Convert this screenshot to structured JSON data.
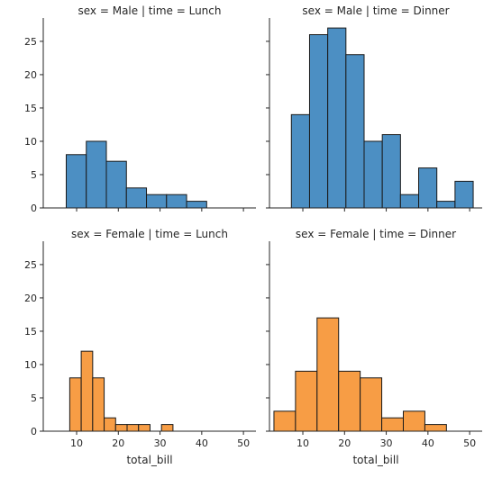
{
  "chart_data": {
    "type": "bar",
    "subtype": "histogram-facet-grid",
    "xlabel": "total_bill",
    "ylabel": "",
    "xlim": [
      2,
      53
    ],
    "ylim": [
      0,
      28.5
    ],
    "xticks": [
      10,
      20,
      30,
      40,
      50
    ],
    "yticks": [
      0,
      5,
      10,
      15,
      20,
      25
    ],
    "grid": false,
    "colors": {
      "male": "#4c8fc3",
      "female": "#f79d45",
      "edge": "#1a1a1a"
    },
    "panels": [
      {
        "title": "sex = Male | time = Lunch",
        "row": 0,
        "col": 0,
        "color": "#4c8fc3",
        "bin_start": 7.51,
        "bin_width": 4.81,
        "counts": [
          8,
          10,
          7,
          3,
          2,
          2,
          1
        ]
      },
      {
        "title": "sex = Male | time = Dinner",
        "row": 0,
        "col": 1,
        "color": "#4c8fc3",
        "bin_start": 7.25,
        "bin_width": 4.36,
        "counts": [
          14,
          26,
          27,
          23,
          10,
          11,
          2,
          6,
          1,
          4
        ]
      },
      {
        "title": "sex = Female | time = Lunch",
        "row": 1,
        "col": 0,
        "color": "#f79d45",
        "bin_start": 8.35,
        "bin_width": 2.75,
        "counts": [
          8,
          12,
          8,
          2,
          1,
          1,
          1,
          0,
          1
        ]
      },
      {
        "title": "sex = Female | time = Dinner",
        "row": 1,
        "col": 1,
        "color": "#f79d45",
        "bin_start": 3.07,
        "bin_width": 5.17,
        "counts": [
          3,
          9,
          17,
          9,
          8,
          2,
          3,
          1
        ]
      }
    ]
  }
}
